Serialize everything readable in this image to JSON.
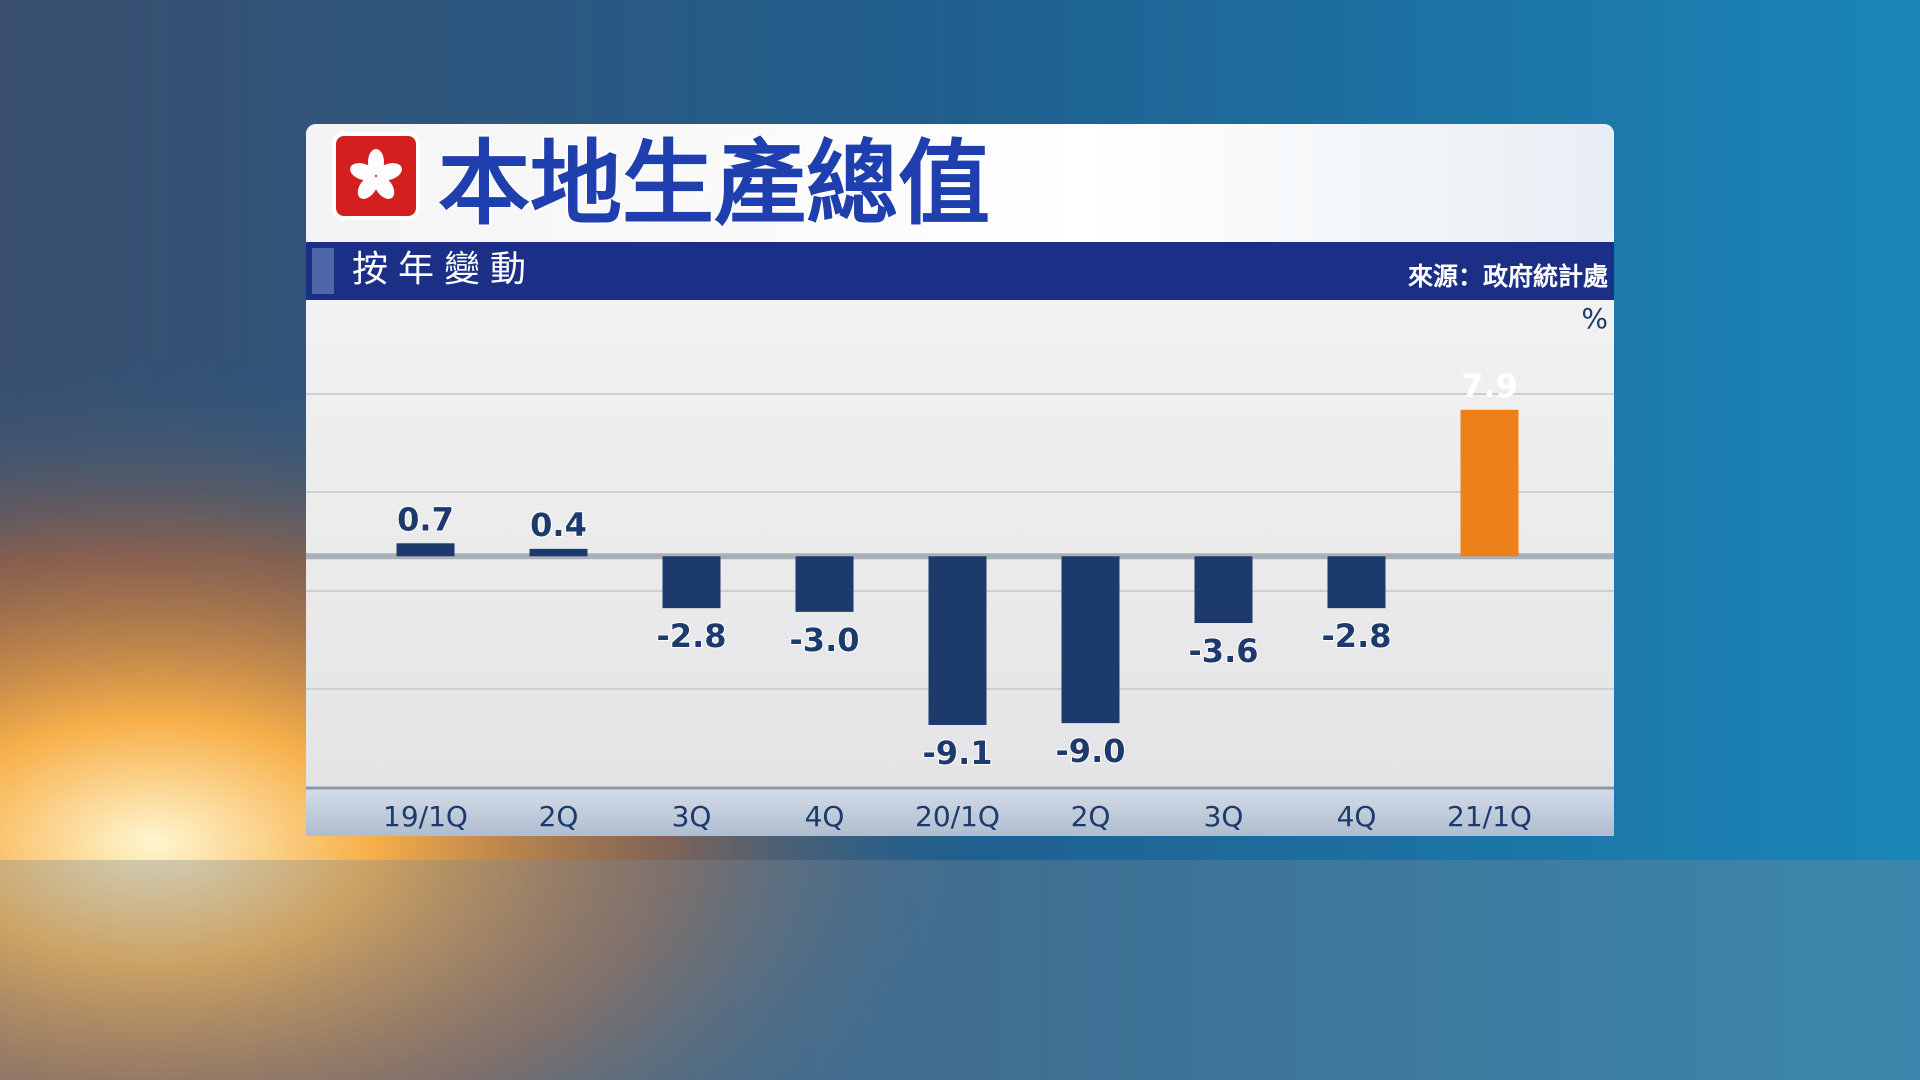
{
  "chart_data": {
    "type": "bar",
    "title": "本地生產總值",
    "subtitle": "按年變動",
    "source": "來源：政府統計處",
    "unit": "%",
    "categories": [
      "19/1Q",
      "2Q",
      "3Q",
      "4Q",
      "20/1Q",
      "2Q",
      "3Q",
      "4Q",
      "21/1Q"
    ],
    "values": [
      0.7,
      0.4,
      -2.8,
      -3.0,
      -9.1,
      -9.0,
      -3.6,
      -2.8,
      7.9
    ],
    "value_labels": [
      "0.7",
      "0.4",
      "-2.8",
      "-3.0",
      "-9.1",
      "-9.0",
      "-3.6",
      "-2.8",
      "7.9"
    ],
    "colors": [
      "#1c3b6c",
      "#1c3b6c",
      "#1c3b6c",
      "#1c3b6c",
      "#1c3b6c",
      "#1c3b6c",
      "#1c3b6c",
      "#1c3b6c",
      "#ee8019"
    ],
    "ylim": [
      -12.5,
      13.5
    ]
  }
}
